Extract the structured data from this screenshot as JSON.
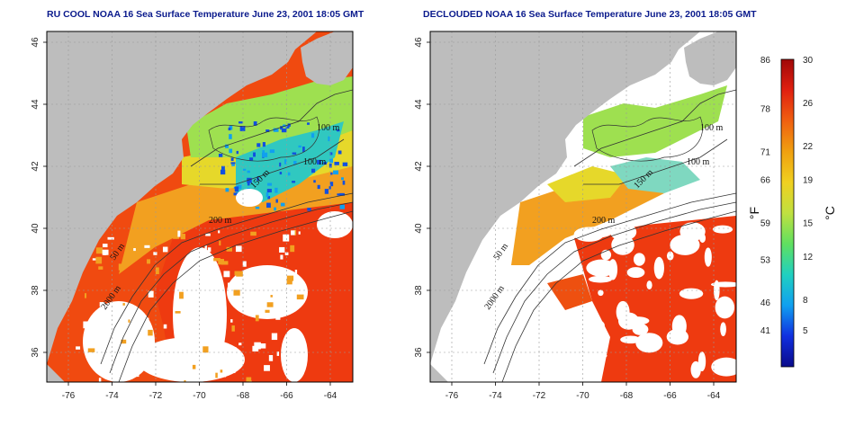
{
  "panels": [
    {
      "title": "RU COOL NOAA 16 Sea Surface Temperature June 23, 2001 18:05 GMT",
      "contour_labels": [
        "100 m",
        "100 m",
        "150 m",
        "200 m",
        "50 m",
        "2000 m"
      ]
    },
    {
      "title": "DECLOUDED NOAA 16 Sea Surface Temperature June 23, 2001 18:05 GMT",
      "contour_labels": [
        "100 m",
        "100 m",
        "150 m",
        "200 m",
        "50 m",
        "2000 m"
      ]
    }
  ],
  "x_ticks": [
    "-76",
    "-74",
    "-72",
    "-70",
    "-68",
    "-66",
    "-64"
  ],
  "y_ticks": [
    "46",
    "44",
    "42",
    "40",
    "38",
    "36"
  ],
  "colorbar": {
    "fahrenheit_ticks": [
      "86",
      "78",
      "71",
      "66",
      "59",
      "53",
      "46",
      "41"
    ],
    "celsius_ticks": [
      "30",
      "26",
      "22",
      "19",
      "15",
      "12",
      "8",
      "5"
    ],
    "left_unit": "°F",
    "right_unit": "°C",
    "colors": [
      "#0a0a8a",
      "#1030e0",
      "#10a0f0",
      "#20d0c0",
      "#60e060",
      "#c0e040",
      "#f0d020",
      "#f0a010",
      "#f06010",
      "#e02010",
      "#a00808"
    ]
  },
  "colors": {
    "land": "#bdbdbd",
    "cloud": "#ffffff",
    "title": "#0a1a8c"
  }
}
